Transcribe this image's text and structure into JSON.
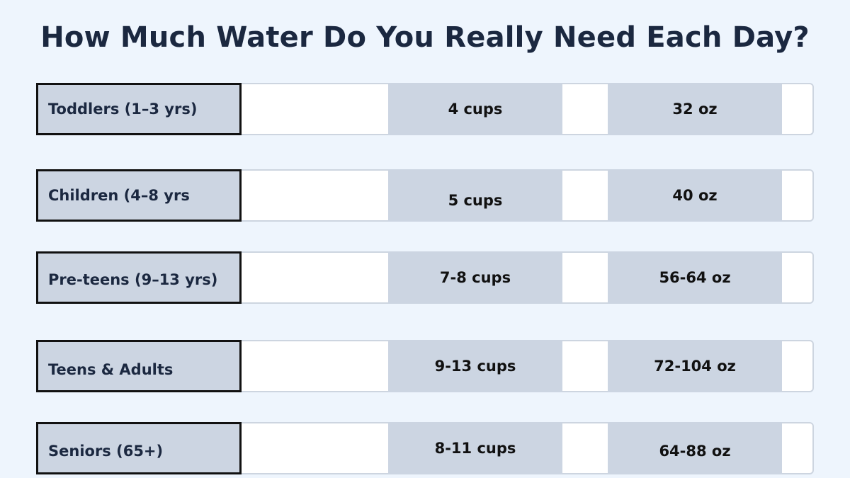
{
  "title": "How Much Water Do You Really Need Each Day?",
  "rows": [
    {
      "label": "Toddlers (1–3 yrs)",
      "cups": "4 cups",
      "oz": "32 oz"
    },
    {
      "label": "Children (4–8 yrs",
      "cups": "5 cups",
      "oz": "40 oz"
    },
    {
      "label": "Pre-teens (9–13 yrs)",
      "cups": "7-8 cups",
      "oz": "56-64 oz"
    },
    {
      "label": "Teens & Adults",
      "cups": "9-13 cups",
      "oz": "72-104 oz"
    },
    {
      "label": "Seniors (65+)",
      "cups": "8-11 cups",
      "oz": "64-88 oz"
    }
  ],
  "colors": {
    "background": "#eef5fd",
    "title": "#1b2840",
    "cell_fill": "#ccd5e2",
    "cell_border": "#111111",
    "row_frame": "#cdd5e0"
  }
}
